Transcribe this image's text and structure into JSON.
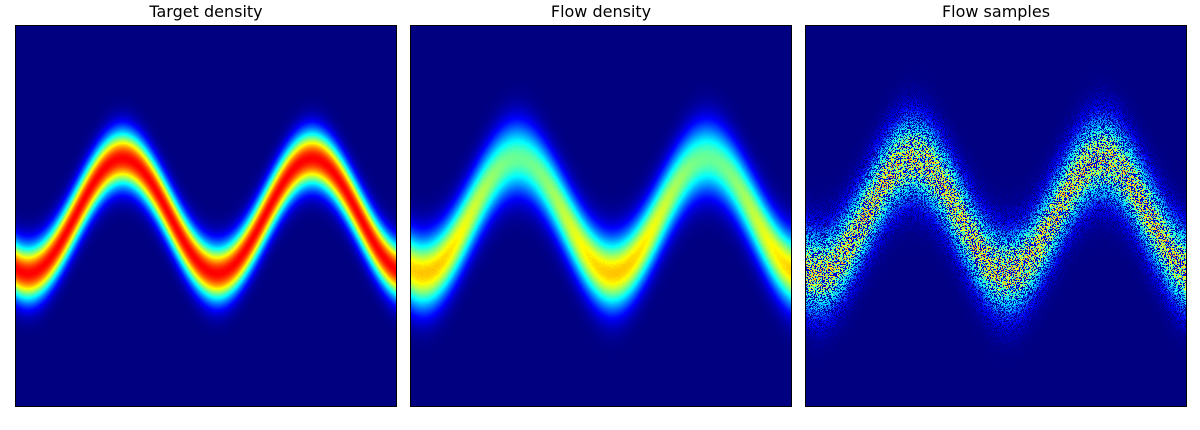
{
  "chart_data": [
    {
      "type": "heatmap",
      "title": "Target density",
      "xlabel": "",
      "ylabel": "",
      "grid": false,
      "colormap": "jet",
      "ticks": "none",
      "pattern": "sine band",
      "band_center": {
        "baseline": 0.0,
        "amplitude": 0.55,
        "periods": 2,
        "phase_start": "rising"
      },
      "band_width_sigma": 0.1,
      "peak_color": "#800000"
    },
    {
      "type": "heatmap",
      "title": "Flow density",
      "xlabel": "",
      "ylabel": "",
      "grid": false,
      "colormap": "jet",
      "ticks": "none",
      "pattern": "sine band (approximation)",
      "band_center": {
        "baseline": 0.0,
        "amplitude": 0.55,
        "periods": 2,
        "phase_start": "rising"
      },
      "band_width_sigma": 0.13,
      "peak_color": "#ff4000"
    },
    {
      "type": "heatmap",
      "title": "Flow samples",
      "xlabel": "",
      "ylabel": "",
      "grid": false,
      "colormap": "jet",
      "ticks": "none",
      "pattern": "sine band (sample histogram)",
      "band_center": {
        "baseline": 0.0,
        "amplitude": 0.55,
        "periods": 2,
        "phase_start": "rising"
      },
      "band_width_sigma": 0.15,
      "peak_color": "#c0ff40"
    }
  ]
}
